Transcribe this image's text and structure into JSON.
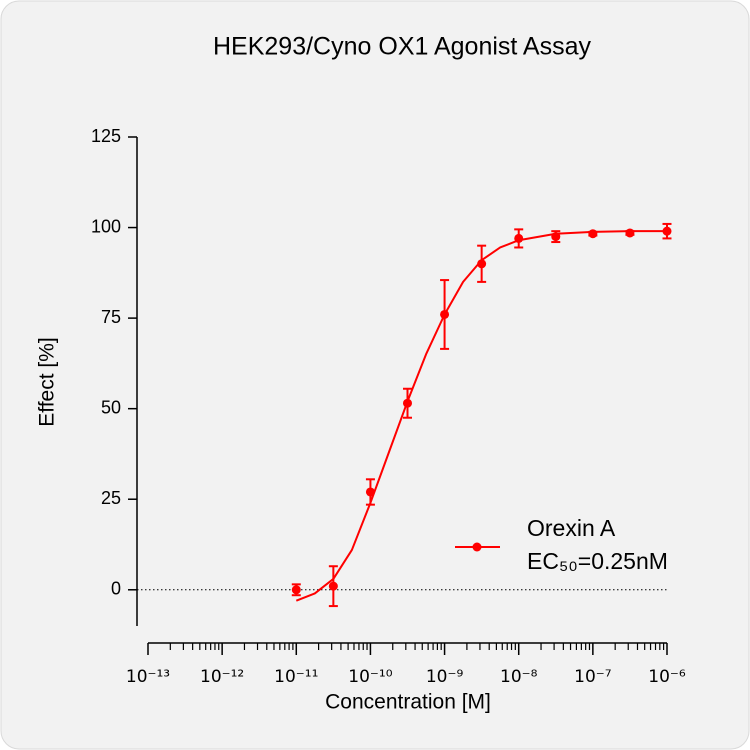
{
  "chart_data": {
    "type": "dose_response",
    "title": "HEK293/Cyno OX1 Agonist Assay",
    "x_label": "Concentration [M]",
    "y_label": "Effect  [%]",
    "x_scale": "log",
    "xlim": [
      1e-13,
      1e-06
    ],
    "xticks": [
      {
        "value": 1e-13,
        "label": "10⁻¹³"
      },
      {
        "value": 1e-12,
        "label": "10⁻¹²"
      },
      {
        "value": 1e-11,
        "label": "10⁻¹¹"
      },
      {
        "value": 1e-10,
        "label": "10⁻¹⁰"
      },
      {
        "value": 1e-09,
        "label": "10⁻⁹"
      },
      {
        "value": 1e-08,
        "label": "10⁻⁸"
      },
      {
        "value": 1e-07,
        "label": "10⁻⁷"
      },
      {
        "value": 1e-06,
        "label": "10⁻⁶"
      }
    ],
    "xminorticks": [
      2e-13,
      3e-13,
      4e-13,
      5e-13,
      6e-13,
      7e-13,
      8e-13,
      9e-13,
      2e-12,
      3e-12,
      4e-12,
      5e-12,
      6e-12,
      7e-12,
      8e-12,
      9e-12,
      2e-11,
      3e-11,
      4e-11,
      5e-11,
      6e-11,
      7e-11,
      8e-11,
      9e-11,
      2e-10,
      3e-10,
      4e-10,
      5e-10,
      6e-10,
      7e-10,
      8e-10,
      9e-10,
      2e-09,
      3e-09,
      4e-09,
      5e-09,
      6e-09,
      7e-09,
      8e-09,
      9e-09,
      2e-08,
      3e-08,
      4e-08,
      5e-08,
      6e-08,
      7e-08,
      8e-08,
      9e-08,
      2e-07,
      3e-07,
      4e-07,
      5e-07,
      6e-07,
      7e-07,
      8e-07,
      9e-07
    ],
    "ylim": [
      -10,
      125
    ],
    "yticks": [
      0,
      25,
      50,
      75,
      100,
      125
    ],
    "zero_line": true,
    "x": [
      1e-11,
      3.162e-11,
      1e-10,
      3.162e-10,
      1e-09,
      3.162e-09,
      1e-08,
      3.162e-08,
      1e-07,
      3.162e-07,
      1e-06
    ],
    "series": [
      {
        "name": "Orexin A",
        "color": "#ff0000",
        "values": [
          0,
          1,
          27,
          51.5,
          76,
          90,
          97,
          97.5,
          98.3,
          98.5,
          99
        ],
        "errors": [
          1.5,
          5.5,
          3.5,
          4,
          9.5,
          5,
          2.5,
          1.5,
          0.5,
          0.5,
          2
        ]
      }
    ],
    "fit_curve": {
      "x": [
        1e-11,
        1.778e-11,
        3.162e-11,
        5.623e-11,
        1e-10,
        1.778e-10,
        3.162e-10,
        5.623e-10,
        1e-09,
        1.778e-09,
        3.162e-09,
        5.623e-09,
        1e-08,
        3.162e-08,
        1e-07,
        3.162e-07,
        1e-06
      ],
      "values": [
        -3,
        -1,
        3,
        11,
        24,
        38,
        52,
        65,
        76,
        85,
        91,
        94.5,
        96.5,
        98.3,
        98.8,
        99,
        99
      ]
    },
    "annotation": "EC₅₀=0.25nM",
    "legend": "lower right"
  }
}
